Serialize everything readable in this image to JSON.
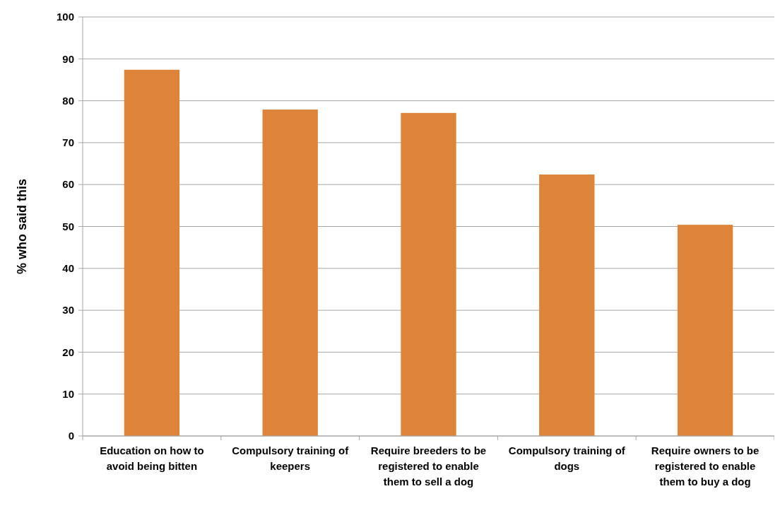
{
  "chart_data": {
    "type": "bar",
    "ylabel": "% who said this",
    "categories": [
      "Education on how to avoid being bitten",
      "Compulsory training of keepers",
      "Require breeders to be registered to enable them to sell a dog",
      "Compulsory training of dogs",
      "Require owners to be registered to enable them to buy a dog"
    ],
    "values": [
      87.4,
      77.9,
      77.1,
      62.4,
      50.4
    ],
    "color": "#dd843a",
    "ylim": [
      0,
      100
    ],
    "yticks": [
      0,
      10,
      20,
      30,
      40,
      50,
      60,
      70,
      80,
      90,
      100
    ],
    "grid": "y"
  }
}
